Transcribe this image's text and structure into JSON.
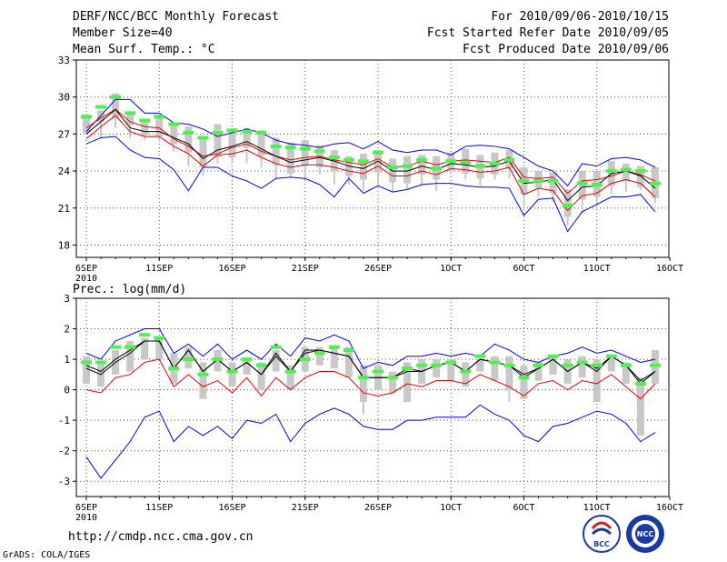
{
  "header": {
    "title": "DERF/NCC/BCC Monthly Forecast",
    "member_size": "Member Size=40",
    "variable": "Mean Surf. Temp.: °C",
    "period": "For 2010/09/06-2010/10/15",
    "fcst_started": "Fcst Started Refer Date 2010/09/05",
    "fcst_produced": "Fcst Produced Date 2010/09/06"
  },
  "footer": {
    "url": "http://cmdp.ncc.cma.gov.cn",
    "grads": "GrADS: COLA/IGES",
    "logo_left": "BCC",
    "logo_right": "NCC"
  },
  "colors": {
    "blue": "#0000e6",
    "red": "#e60000",
    "black": "#000000",
    "green": "#50f050",
    "gray": "#c8c8c8",
    "grid": "#555555"
  },
  "chart_data": [
    {
      "type": "line",
      "title": "Mean Surf. Temp.: °C",
      "ylabel": "",
      "ylim": [
        17,
        33
      ],
      "yticks": [
        18,
        21,
        24,
        27,
        30,
        33
      ],
      "ytick_labels": [
        "18",
        "21",
        "24",
        "27",
        "30",
        "33"
      ],
      "xlim": [
        0,
        40
      ],
      "xtick_labels": [
        {
          "day": 0,
          "label": "6SEP"
        },
        {
          "day": 5,
          "label": "11SEP"
        },
        {
          "day": 10,
          "label": "16SEP"
        },
        {
          "day": 15,
          "label": "21SEP"
        },
        {
          "day": 20,
          "label": "26SEP"
        },
        {
          "day": 25,
          "label": "1OCT"
        },
        {
          "day": 30,
          "label": "6OCT"
        },
        {
          "day": 35,
          "label": "11OCT"
        },
        {
          "day": 40,
          "label": "16OCT"
        }
      ],
      "year_label": "2010",
      "series": [
        {
          "name": "max",
          "color": "blue",
          "values": [
            27.2,
            28.5,
            29.8,
            29.8,
            28.7,
            28.7,
            27.9,
            27.8,
            27.4,
            26.8,
            27.1,
            27.4,
            27.1,
            26.5,
            26.2,
            26.1,
            25.9,
            26.2,
            26.3,
            25.8,
            26.4,
            25.7,
            25.5,
            25.7,
            25.7,
            25.3,
            26.0,
            26.1,
            26.0,
            25.8,
            25.1,
            24.4,
            24.0,
            22.8,
            24.6,
            24.4,
            25.0,
            25.1,
            24.9,
            24.3
          ]
        },
        {
          "name": "upper",
          "color": "red",
          "values": [
            27.5,
            28.3,
            29.0,
            28.0,
            27.6,
            27.5,
            26.6,
            26.0,
            25.2,
            25.4,
            25.9,
            26.2,
            25.6,
            25.2,
            24.9,
            25.1,
            25.2,
            24.9,
            24.7,
            24.5,
            25.0,
            24.3,
            24.4,
            24.8,
            24.5,
            24.8,
            24.9,
            24.8,
            24.7,
            25.1,
            23.5,
            23.4,
            23.5,
            22.2,
            23.2,
            23.3,
            23.6,
            24.0,
            23.7,
            23.2
          ]
        },
        {
          "name": "mean",
          "color": "black",
          "values": [
            27.0,
            28.0,
            29.0,
            27.5,
            27.2,
            27.2,
            26.7,
            26.2,
            25.0,
            25.7,
            26.0,
            26.4,
            25.8,
            25.2,
            24.7,
            24.9,
            25.1,
            24.8,
            24.4,
            24.2,
            24.8,
            24.0,
            24.0,
            24.4,
            24.1,
            24.6,
            24.5,
            24.3,
            24.4,
            24.8,
            23.0,
            23.1,
            23.3,
            21.6,
            22.7,
            22.8,
            23.8,
            24.0,
            23.6,
            22.6
          ]
        },
        {
          "name": "lower",
          "color": "red",
          "values": [
            26.6,
            27.6,
            28.5,
            27.2,
            26.8,
            26.8,
            26.0,
            25.4,
            24.4,
            25.3,
            25.4,
            25.7,
            25.1,
            24.6,
            24.3,
            24.5,
            24.5,
            24.3,
            24.0,
            23.8,
            24.4,
            23.6,
            23.6,
            24.0,
            23.7,
            24.2,
            24.1,
            23.9,
            24.0,
            24.3,
            22.1,
            22.6,
            22.4,
            20.8,
            22.0,
            22.2,
            23.0,
            23.3,
            23.0,
            21.9
          ]
        },
        {
          "name": "min",
          "color": "blue",
          "values": [
            26.2,
            26.7,
            26.8,
            25.7,
            25.1,
            25.0,
            24.1,
            22.4,
            24.3,
            24.3,
            23.6,
            23.2,
            22.6,
            23.4,
            23.5,
            23.4,
            22.9,
            21.9,
            23.4,
            22.2,
            22.8,
            22.3,
            22.5,
            22.9,
            23.0,
            23.0,
            22.8,
            22.7,
            22.7,
            22.6,
            20.4,
            21.7,
            21.8,
            19.1,
            20.7,
            21.3,
            21.9,
            21.9,
            22.1,
            20.7
          ]
        }
      ],
      "boxes": {
        "color": "gray",
        "low": [
          27.1,
          28.0,
          28.2,
          27.7,
          26.9,
          26.8,
          26.2,
          25.5,
          24.3,
          25.1,
          25.1,
          25.9,
          25.2,
          24.5,
          23.8,
          24.4,
          24.3,
          24.0,
          23.6,
          23.3,
          23.9,
          23.1,
          23.0,
          23.7,
          23.3,
          24.0,
          23.8,
          23.4,
          23.7,
          24.2,
          22.1,
          22.6,
          22.2,
          20.3,
          21.7,
          21.9,
          22.8,
          23.2,
          22.7,
          21.8
        ],
        "high": [
          28.6,
          28.9,
          30.3,
          28.6,
          28.2,
          28.3,
          27.8,
          27.6,
          26.7,
          27.8,
          27.3,
          27.5,
          27.3,
          26.7,
          26.3,
          26.5,
          26.1,
          25.7,
          25.2,
          25.4,
          25.7,
          25.0,
          25.2,
          25.3,
          25.2,
          25.5,
          25.8,
          25.3,
          25.5,
          25.7,
          24.3,
          24.0,
          23.9,
          22.5,
          24.0,
          24.0,
          24.8,
          24.6,
          24.4,
          24.3
        ],
        "whisker_low": [
          27.1,
          26.7,
          27.5,
          26.7,
          26.5,
          26.4,
          25.6,
          24.4,
          23.6,
          24.6,
          24.7,
          24.6,
          24.3,
          23.3,
          23.5,
          23.3,
          23.7,
          22.9,
          22.9,
          22.4,
          23.0,
          22.3,
          22.5,
          22.8,
          22.4,
          23.8,
          23.3,
          22.8,
          23.3,
          23.4,
          21.1,
          21.9,
          21.5,
          19.6,
          20.6,
          21.1,
          22.1,
          22.3,
          22.5,
          21.4
        ],
        "whisker_high": [
          28.6,
          28.9,
          30.3,
          28.6,
          28.2,
          28.3,
          27.8,
          27.6,
          26.7,
          27.8,
          27.3,
          27.5,
          27.3,
          26.7,
          26.3,
          26.5,
          26.1,
          25.7,
          25.2,
          25.4,
          25.7,
          25.0,
          25.2,
          25.3,
          25.2,
          25.5,
          25.8,
          25.3,
          25.5,
          25.7,
          24.3,
          24.0,
          23.9,
          22.5,
          24.0,
          24.0,
          24.8,
          24.6,
          24.4,
          24.3
        ]
      },
      "markers": {
        "name": "observed",
        "color": "green",
        "values": [
          28.4,
          29.2,
          30.0,
          28.7,
          28.1,
          28.4,
          27.8,
          27.1,
          26.7,
          27.1,
          27.3,
          27.2,
          27.1,
          26.0,
          25.9,
          25.8,
          25.6,
          25.1,
          24.9,
          24.8,
          25.5,
          24.3,
          24.4,
          24.9,
          24.2,
          24.8,
          24.7,
          24.4,
          24.6,
          24.9,
          23.2,
          23.2,
          23.2,
          21.2,
          23.0,
          22.9,
          24.0,
          24.1,
          24.0,
          23.0
        ]
      }
    },
    {
      "type": "line",
      "title": "Prec.: log(mm/d)",
      "ylabel": "",
      "ylim": [
        -3.5,
        3
      ],
      "yticks": [
        -3,
        -2,
        -1,
        0,
        1,
        2,
        3
      ],
      "ytick_labels": [
        "-3",
        "-2",
        "-1",
        "0",
        "1",
        "2",
        "3"
      ],
      "xlim": [
        0,
        40
      ],
      "xtick_labels": [
        {
          "day": 0,
          "label": "6SEP"
        },
        {
          "day": 5,
          "label": "11SEP"
        },
        {
          "day": 10,
          "label": "16SEP"
        },
        {
          "day": 15,
          "label": "21SEP"
        },
        {
          "day": 20,
          "label": "26SEP"
        },
        {
          "day": 25,
          "label": "1OCT"
        },
        {
          "day": 30,
          "label": "6OCT"
        },
        {
          "day": 35,
          "label": "11OCT"
        },
        {
          "day": 40,
          "label": "16OCT"
        }
      ],
      "year_label": "2010",
      "series": [
        {
          "name": "max",
          "color": "blue",
          "values": [
            1.2,
            1.0,
            1.6,
            1.8,
            2.0,
            2.0,
            1.2,
            1.5,
            1.1,
            1.5,
            1.0,
            1.3,
            1.0,
            1.5,
            1.1,
            1.7,
            1.6,
            1.8,
            1.6,
            0.7,
            0.9,
            0.8,
            1.1,
            1.1,
            1.2,
            1.1,
            1.2,
            1.1,
            1.5,
            1.3,
            1.0,
            0.9,
            1.1,
            1.2,
            1.4,
            1.2,
            1.3,
            1.1,
            0.9,
            1.0
          ]
        },
        {
          "name": "upper",
          "color": "black",
          "values": [
            0.7,
            0.5,
            0.9,
            1.2,
            1.6,
            1.6,
            0.7,
            1.3,
            0.6,
            1.0,
            0.6,
            0.9,
            0.5,
            1.2,
            0.6,
            1.3,
            1.3,
            1.2,
            1.1,
            0.4,
            0.4,
            0.4,
            0.7,
            0.6,
            0.8,
            0.9,
            0.6,
            1.0,
            0.9,
            0.8,
            0.5,
            0.7,
            1.0,
            0.6,
            0.9,
            0.7,
            1.1,
            0.8,
            0.3,
            0.6
          ]
        },
        {
          "name": "mean",
          "color": "black",
          "values": [
            0.8,
            0.6,
            1.0,
            1.3,
            1.6,
            1.6,
            0.7,
            1.3,
            0.6,
            1.0,
            0.6,
            0.9,
            0.5,
            1.1,
            0.6,
            1.2,
            1.3,
            1.2,
            1.1,
            0.4,
            0.4,
            0.4,
            0.6,
            0.6,
            0.8,
            0.9,
            0.6,
            1.0,
            0.9,
            0.8,
            0.4,
            0.7,
            1.0,
            0.6,
            0.9,
            0.6,
            1.1,
            0.8,
            0.2,
            0.6
          ]
        },
        {
          "name": "lower",
          "color": "red",
          "values": [
            0.0,
            -0.1,
            0.4,
            0.5,
            0.9,
            1.0,
            0.1,
            0.5,
            0.1,
            0.3,
            -0.1,
            0.4,
            -0.2,
            0.4,
            0.0,
            0.4,
            0.6,
            0.6,
            0.4,
            -0.1,
            -0.2,
            -0.1,
            0.2,
            0.1,
            0.3,
            0.3,
            0.2,
            0.5,
            0.3,
            0.1,
            -0.2,
            0.2,
            0.3,
            0.0,
            0.3,
            0.2,
            0.5,
            0.1,
            -0.3,
            0.2
          ]
        },
        {
          "name": "min",
          "color": "blue",
          "values": [
            -2.2,
            -2.9,
            -2.3,
            -1.7,
            -0.9,
            -0.7,
            -1.7,
            -1.2,
            -1.5,
            -1.2,
            -1.6,
            -1.0,
            -1.1,
            -0.8,
            -1.7,
            -1.1,
            -0.8,
            -0.6,
            -0.8,
            -1.2,
            -1.3,
            -1.3,
            -1.0,
            -1.0,
            -0.9,
            -0.9,
            -0.9,
            -0.5,
            -0.8,
            -1.0,
            -1.5,
            -1.7,
            -1.2,
            -1.1,
            -0.9,
            -0.7,
            -0.8,
            -1.1,
            -1.7,
            -1.4
          ]
        }
      ],
      "boxes": {
        "color": "gray",
        "low": [
          0.2,
          0.1,
          0.5,
          0.6,
          1.0,
          1.0,
          0.2,
          0.7,
          -0.3,
          0.6,
          0.1,
          0.5,
          0.0,
          0.6,
          0.0,
          0.6,
          0.8,
          0.7,
          0.4,
          -0.4,
          0.0,
          -0.1,
          -0.4,
          0.2,
          0.4,
          0.3,
          0.1,
          0.6,
          0.3,
          0.0,
          -0.3,
          0.3,
          0.5,
          0.2,
          0.4,
          -0.4,
          0.6,
          0.2,
          -1.5,
          0.2
        ],
        "high": [
          1.1,
          0.9,
          1.3,
          1.6,
          1.7,
          1.7,
          1.2,
          1.4,
          0.9,
          1.3,
          0.9,
          1.0,
          0.9,
          1.3,
          0.8,
          1.4,
          1.4,
          1.4,
          1.4,
          0.8,
          0.8,
          0.6,
          0.9,
          1.0,
          1.0,
          1.0,
          0.9,
          1.0,
          1.1,
          1.1,
          0.8,
          0.9,
          1.1,
          1.0,
          1.1,
          1.0,
          1.1,
          0.9,
          0.4,
          1.3
        ],
        "whisker_low": [
          0.2,
          0.1,
          0.5,
          0.6,
          1.0,
          1.0,
          0.2,
          0.7,
          -0.3,
          0.6,
          0.1,
          0.5,
          0.0,
          0.6,
          0.0,
          0.6,
          0.8,
          0.7,
          0.4,
          -0.8,
          0.0,
          -0.1,
          -0.4,
          0.2,
          0.4,
          0.3,
          0.1,
          0.6,
          0.3,
          -0.4,
          -0.3,
          0.3,
          0.5,
          0.2,
          0.4,
          -0.4,
          0.6,
          0.2,
          -1.5,
          0.2
        ],
        "whisker_high": [
          1.1,
          0.9,
          1.3,
          1.6,
          1.7,
          1.7,
          1.2,
          1.4,
          0.9,
          1.3,
          0.9,
          1.0,
          0.9,
          1.3,
          0.8,
          1.4,
          1.4,
          1.4,
          1.4,
          0.8,
          0.8,
          0.6,
          0.9,
          1.0,
          1.0,
          1.0,
          0.9,
          1.0,
          1.1,
          1.1,
          0.8,
          0.9,
          1.1,
          1.0,
          1.1,
          1.0,
          1.1,
          0.9,
          0.4,
          1.3
        ]
      },
      "markers": {
        "name": "observed",
        "color": "green",
        "values": [
          0.9,
          0.9,
          1.4,
          1.4,
          1.8,
          1.7,
          0.7,
          1.0,
          0.5,
          1.0,
          0.6,
          1.0,
          0.8,
          1.4,
          0.6,
          1.0,
          1.2,
          1.4,
          1.3,
          0.4,
          0.6,
          0.4,
          0.7,
          0.8,
          0.8,
          0.9,
          0.6,
          1.1,
          0.9,
          0.8,
          0.4,
          0.8,
          1.1,
          0.8,
          0.9,
          0.8,
          1.1,
          0.8,
          0.2,
          0.8
        ]
      }
    }
  ]
}
